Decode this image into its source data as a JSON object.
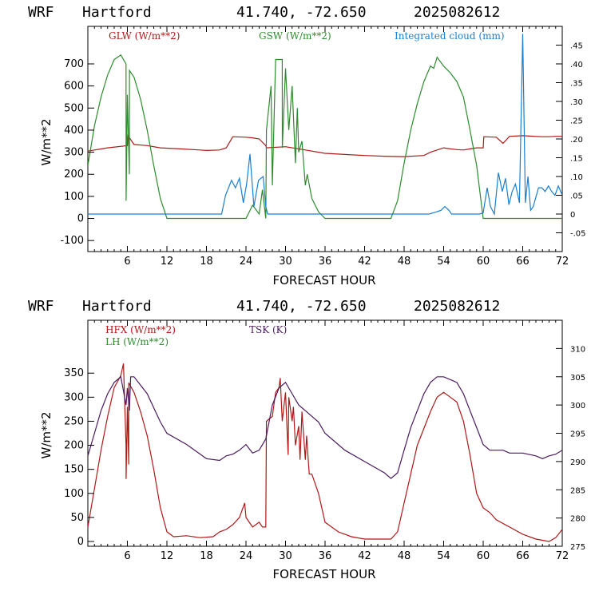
{
  "chart_data": [
    {
      "type": "line",
      "header": {
        "model": "WRF",
        "station": "Hartford",
        "coords": "41.740, -72.650",
        "run": "2025082612"
      },
      "xlabel": "FORECAST HOUR",
      "ylabel": "W/m**2",
      "xlim": [
        0,
        72
      ],
      "ylim": [
        -150,
        870
      ],
      "y2lim": [
        -0.1,
        0.5
      ],
      "xticks": [
        "6",
        "12",
        "18",
        "24",
        "30",
        "36",
        "42",
        "48",
        "54",
        "60",
        "66",
        "72"
      ],
      "yticks": [
        "-100",
        "0",
        "100",
        "200",
        "300",
        "400",
        "500",
        "600",
        "700"
      ],
      "y2ticks": [
        "-.05",
        "0",
        ".05",
        ".10",
        ".15",
        ".20",
        ".25",
        ".30",
        ".35",
        ".40",
        ".45"
      ],
      "series": [
        {
          "name": "GLW (W/m**2)",
          "color": "#b01818",
          "axis": "left",
          "x": [
            0,
            3,
            6,
            6.1,
            7,
            9,
            11,
            14,
            17,
            18,
            20,
            21,
            22,
            24,
            25,
            26,
            27,
            27.1,
            30,
            33,
            36,
            39,
            42,
            45,
            48,
            51,
            52,
            54,
            55,
            56,
            57,
            58,
            59,
            60,
            60.1,
            62,
            63,
            64,
            66,
            67,
            69,
            70,
            71,
            72
          ],
          "y": [
            305,
            320,
            330,
            375,
            335,
            330,
            320,
            315,
            310,
            308,
            310,
            320,
            370,
            368,
            365,
            360,
            330,
            320,
            325,
            310,
            295,
            290,
            285,
            282,
            280,
            285,
            300,
            320,
            315,
            312,
            310,
            315,
            320,
            320,
            370,
            368,
            340,
            372,
            375,
            373,
            370,
            370,
            372,
            372
          ]
        },
        {
          "name": "GSW (W/m**2)",
          "color": "#2e8b2e",
          "axis": "left",
          "x": [
            0,
            1,
            2,
            3,
            4,
            5,
            5.8,
            5.81,
            6,
            6.3,
            6.31,
            7,
            8,
            9,
            10,
            11,
            12,
            20,
            20.8,
            22,
            24,
            25,
            26,
            26.5,
            27,
            27.1,
            27.8,
            28,
            28.5,
            29.5,
            29.51,
            30,
            30.5,
            31,
            31.5,
            31.8,
            32,
            32.5,
            33,
            33.3,
            34,
            35,
            36,
            46,
            47,
            48,
            49,
            50,
            51,
            52,
            52.5,
            53,
            54,
            55,
            56,
            57,
            58,
            59,
            60,
            72
          ],
          "y": [
            240,
            420,
            550,
            650,
            720,
            740,
            700,
            80,
            560,
            200,
            670,
            640,
            540,
            400,
            240,
            90,
            0,
            0,
            0,
            0,
            0,
            60,
            20,
            130,
            0,
            400,
            600,
            150,
            720,
            720,
            320,
            680,
            400,
            600,
            250,
            500,
            300,
            350,
            150,
            200,
            90,
            30,
            0,
            0,
            80,
            250,
            400,
            520,
            620,
            690,
            680,
            730,
            690,
            660,
            620,
            550,
            400,
            240,
            0,
            0
          ]
        },
        {
          "name": "Integrated cloud (mm)",
          "color": "#1a7fcf",
          "axis": "right",
          "x": [
            0,
            20,
            20.3,
            20.9,
            21.8,
            22.4,
            23,
            23.6,
            24.1,
            24.6,
            25.2,
            25.9,
            26.6,
            27,
            27.3,
            51.8,
            52.8,
            53.6,
            54.2,
            54.8,
            55.2,
            59.5,
            60,
            60.6,
            61.1,
            61.7,
            62.3,
            62.9,
            63.4,
            63.9,
            64.4,
            64.9,
            65.5,
            66,
            66.4,
            66.8,
            67.2,
            67.6,
            68,
            68.4,
            68.9,
            69.4,
            69.9,
            70.4,
            70.9,
            71.4,
            72
          ],
          "y": [
            0,
            0,
            0,
            0.05,
            0.09,
            0.07,
            0.095,
            0.03,
            0.08,
            0.16,
            0.02,
            0.09,
            0.1,
            0.02,
            0,
            0,
            0.005,
            0.01,
            0.02,
            0.01,
            0,
            0,
            0.003,
            0.07,
            0.02,
            0,
            0.11,
            0.06,
            0.095,
            0.025,
            0.06,
            0.08,
            0.03,
            0.48,
            0.03,
            0.1,
            0.01,
            0.02,
            0.045,
            0.07,
            0.07,
            0.06,
            0.075,
            0.06,
            0.05,
            0.075,
            0.05
          ]
        }
      ]
    },
    {
      "type": "line",
      "header": {
        "model": "WRF",
        "station": "Hartford",
        "coords": "41.740, -72.650",
        "run": "2025082612"
      },
      "xlabel": "FORECAST HOUR",
      "ylabel": "W/m**2",
      "xlim": [
        0,
        72
      ],
      "ylim": [
        -10,
        460
      ],
      "y2lim": [
        275,
        315
      ],
      "xticks": [
        "6",
        "12",
        "18",
        "24",
        "30",
        "36",
        "42",
        "48",
        "54",
        "60",
        "66",
        "72"
      ],
      "yticks": [
        "0",
        "50",
        "100",
        "150",
        "200",
        "250",
        "300",
        "350"
      ],
      "y2ticks": [
        "275",
        "280",
        "285",
        "290",
        "295",
        "300",
        "305",
        "310"
      ],
      "series": [
        {
          "name": "HFX (W/m**2)",
          "color": "#b01818",
          "axis": "left",
          "x": [
            0,
            1,
            2,
            3,
            4,
            5,
            5.4,
            5.8,
            5.81,
            6,
            6.2,
            6.21,
            7,
            8,
            9,
            10,
            11,
            12,
            13,
            15,
            17,
            19,
            20,
            21,
            22,
            23,
            23.8,
            24,
            24.5,
            25,
            26,
            26.5,
            27,
            27.1,
            28,
            28.5,
            29,
            29.2,
            29.5,
            30,
            30.4,
            30.5,
            31,
            31.2,
            31.5,
            32,
            32.2,
            32.5,
            33,
            33.2,
            33.6,
            34,
            35,
            36,
            38,
            40,
            42,
            44,
            46,
            47,
            48,
            50,
            52,
            53,
            54,
            55,
            56,
            57,
            58,
            59,
            60,
            61,
            62,
            64,
            66,
            68,
            70,
            71,
            72
          ],
          "y": [
            30,
            110,
            190,
            260,
            320,
            345,
            370,
            200,
            130,
            280,
            160,
            330,
            310,
            270,
            220,
            150,
            70,
            20,
            10,
            12,
            8,
            10,
            20,
            25,
            35,
            50,
            80,
            50,
            40,
            30,
            40,
            30,
            30,
            250,
            260,
            310,
            320,
            340,
            250,
            310,
            180,
            300,
            250,
            280,
            200,
            240,
            170,
            270,
            170,
            220,
            140,
            140,
            100,
            40,
            20,
            10,
            5,
            5,
            5,
            20,
            80,
            200,
            270,
            300,
            310,
            300,
            290,
            250,
            180,
            100,
            70,
            60,
            45,
            30,
            15,
            5,
            0,
            8,
            25
          ]
        },
        {
          "name": "LH (W/m**2)",
          "color": "#2e8b2e",
          "axis": "left",
          "x": [],
          "y": []
        },
        {
          "name": "TSK (K)",
          "color": "#4a1a5e",
          "axis": "right",
          "x": [
            0,
            1,
            2,
            3,
            4,
            5,
            5.8,
            6,
            6.3,
            6.5,
            7,
            9,
            11,
            12,
            15,
            18,
            20,
            21,
            22,
            23,
            24,
            25,
            26,
            27,
            28,
            29,
            30,
            31,
            32,
            33,
            34,
            35,
            36,
            39,
            42,
            45,
            46,
            47,
            48,
            49,
            50,
            51,
            52,
            53,
            54,
            55,
            56,
            57,
            58,
            59,
            60,
            61,
            62,
            63,
            64,
            66,
            68,
            69,
            70,
            71,
            72
          ],
          "y": [
            291,
            295,
            299,
            302,
            304,
            305,
            300,
            303,
            299,
            305,
            305,
            302,
            297,
            295,
            293,
            290.5,
            290.2,
            291,
            291.3,
            292,
            293,
            291.5,
            292,
            294,
            300,
            303,
            304,
            302,
            300,
            299,
            298,
            297,
            295,
            292,
            290,
            288,
            287,
            288,
            292,
            296,
            299,
            302,
            304,
            305,
            305,
            304.5,
            304,
            302,
            299,
            296,
            293,
            292,
            292,
            292,
            291.5,
            291.5,
            291,
            290.5,
            291,
            291.3,
            292
          ]
        }
      ]
    }
  ]
}
